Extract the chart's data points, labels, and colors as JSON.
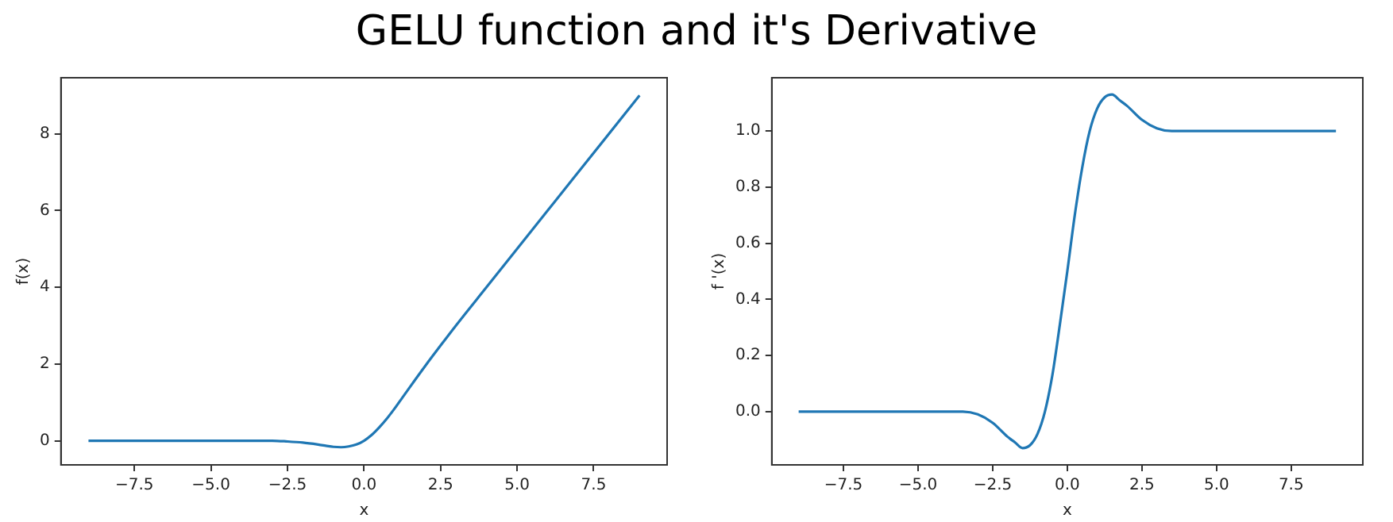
{
  "chart_data": [
    {
      "type": "line",
      "title": "GELU function and it's Derivative",
      "xlabel": "x",
      "ylabel": "f(x)",
      "x": [
        -9,
        -6,
        -4,
        -3,
        -2.5,
        -2,
        -1.5,
        -1.25,
        -1,
        -0.75,
        -0.5,
        -0.25,
        0,
        0.25,
        0.5,
        0.75,
        1,
        1.25,
        1.5,
        2,
        2.5,
        3,
        4,
        6,
        9
      ],
      "series": [
        {
          "color": "#1f77b4",
          "values": [
            0,
            0,
            0,
            0,
            -0.02,
            -0.05,
            -0.1,
            -0.13,
            -0.16,
            -0.17,
            -0.15,
            -0.1,
            0,
            0.15,
            0.35,
            0.58,
            0.84,
            1.12,
            1.4,
            1.95,
            2.48,
            3,
            4,
            6,
            9
          ]
        }
      ],
      "xlim": [
        -9.9,
        9.9
      ],
      "ylim": [
        -0.63,
        9.46
      ],
      "xticks": [
        {
          "value": -7.5,
          "label": "−7.5"
        },
        {
          "value": -5,
          "label": "−5.0"
        },
        {
          "value": -2.5,
          "label": "−2.5"
        },
        {
          "value": 0,
          "label": "0.0"
        },
        {
          "value": 2.5,
          "label": "2.5"
        },
        {
          "value": 5,
          "label": "5.0"
        },
        {
          "value": 7.5,
          "label": "7.5"
        }
      ],
      "yticks": [
        0,
        2,
        4,
        6,
        8
      ],
      "grid": false,
      "legend": false
    },
    {
      "type": "line",
      "xlabel": "x",
      "ylabel": "f '(x)",
      "x": [
        -9,
        -4,
        -3.5,
        -3,
        -2.5,
        -2,
        -1.75,
        -1.5,
        -1.25,
        -1,
        -0.75,
        -0.5,
        -0.25,
        0,
        0.25,
        0.5,
        0.75,
        1,
        1.25,
        1.5,
        1.75,
        2,
        2.5,
        3,
        3.5,
        4,
        9
      ],
      "series": [
        {
          "color": "#1f77b4",
          "values": [
            0,
            0,
            0,
            -0.01,
            -0.04,
            -0.09,
            -0.11,
            -0.13,
            -0.12,
            -0.08,
            0,
            0.13,
            0.31,
            0.5,
            0.7,
            0.87,
            1,
            1.08,
            1.12,
            1.13,
            1.11,
            1.09,
            1.04,
            1.01,
            1,
            1,
            1
          ]
        }
      ],
      "xlim": [
        -9.9,
        9.9
      ],
      "ylim": [
        -0.19,
        1.19
      ],
      "xticks": [
        {
          "value": -7.5,
          "label": "−7.5"
        },
        {
          "value": -5,
          "label": "−5.0"
        },
        {
          "value": -2.5,
          "label": "−2.5"
        },
        {
          "value": 0,
          "label": "0.0"
        },
        {
          "value": 2.5,
          "label": "2.5"
        },
        {
          "value": 5,
          "label": "5.0"
        },
        {
          "value": 7.5,
          "label": "7.5"
        }
      ],
      "yticks": [
        {
          "value": 0,
          "label": "0.0"
        },
        {
          "value": 0.2,
          "label": "0.2"
        },
        {
          "value": 0.4,
          "label": "0.4"
        },
        {
          "value": 0.6,
          "label": "0.6"
        },
        {
          "value": 0.8,
          "label": "0.8"
        },
        {
          "value": 1,
          "label": "1.0"
        }
      ],
      "grid": false,
      "legend": false
    }
  ]
}
